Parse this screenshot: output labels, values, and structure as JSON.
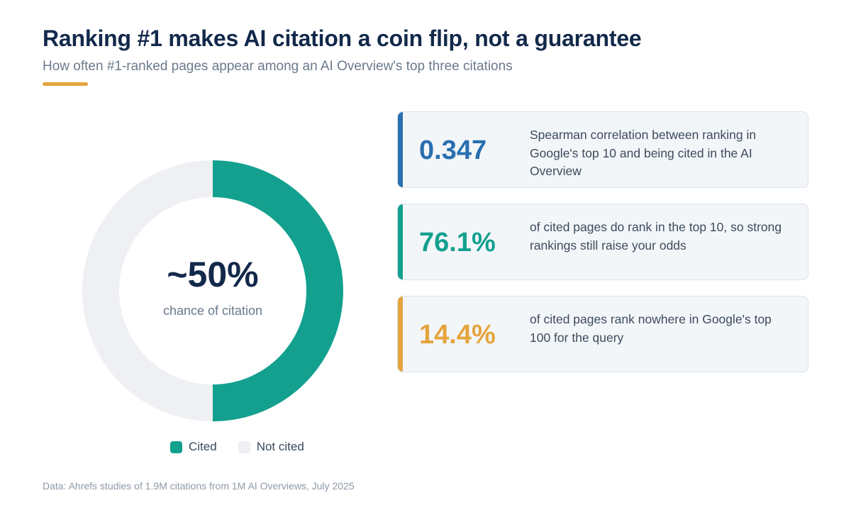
{
  "header": {
    "title": "Ranking #1 makes AI citation a coin flip, not a guarantee",
    "subtitle": "How often #1-ranked pages appear among an AI Overview's top three citations"
  },
  "colors": {
    "cited": "#13a08f",
    "not_cited": "#eef0f3",
    "blue": "#2a6fb0",
    "teal": "#13a08f",
    "orange": "#e5a43e"
  },
  "chart_data": {
    "type": "pie",
    "donut": true,
    "center_value": "~50%",
    "center_label": "chance of citation",
    "categories": [
      "Cited",
      "Not cited"
    ],
    "values": [
      50,
      50
    ],
    "legend_position": "bottom"
  },
  "stats": [
    {
      "value": "0.347",
      "description": "Spearman correlation between ranking in Google's top 10 and being cited in the AI Overview",
      "color": "#2a6fb0"
    },
    {
      "value": "76.1%",
      "description": "of cited pages do rank in the top 10, so strong rankings still raise your odds",
      "color": "#13a08f"
    },
    {
      "value": "14.4%",
      "description": "of cited pages rank nowhere in Google's top 100 for the query",
      "color": "#e5a43e"
    }
  ],
  "footer": {
    "source": "Data: Ahrefs studies of 1.9M citations from 1M AI Overviews, July 2025"
  }
}
